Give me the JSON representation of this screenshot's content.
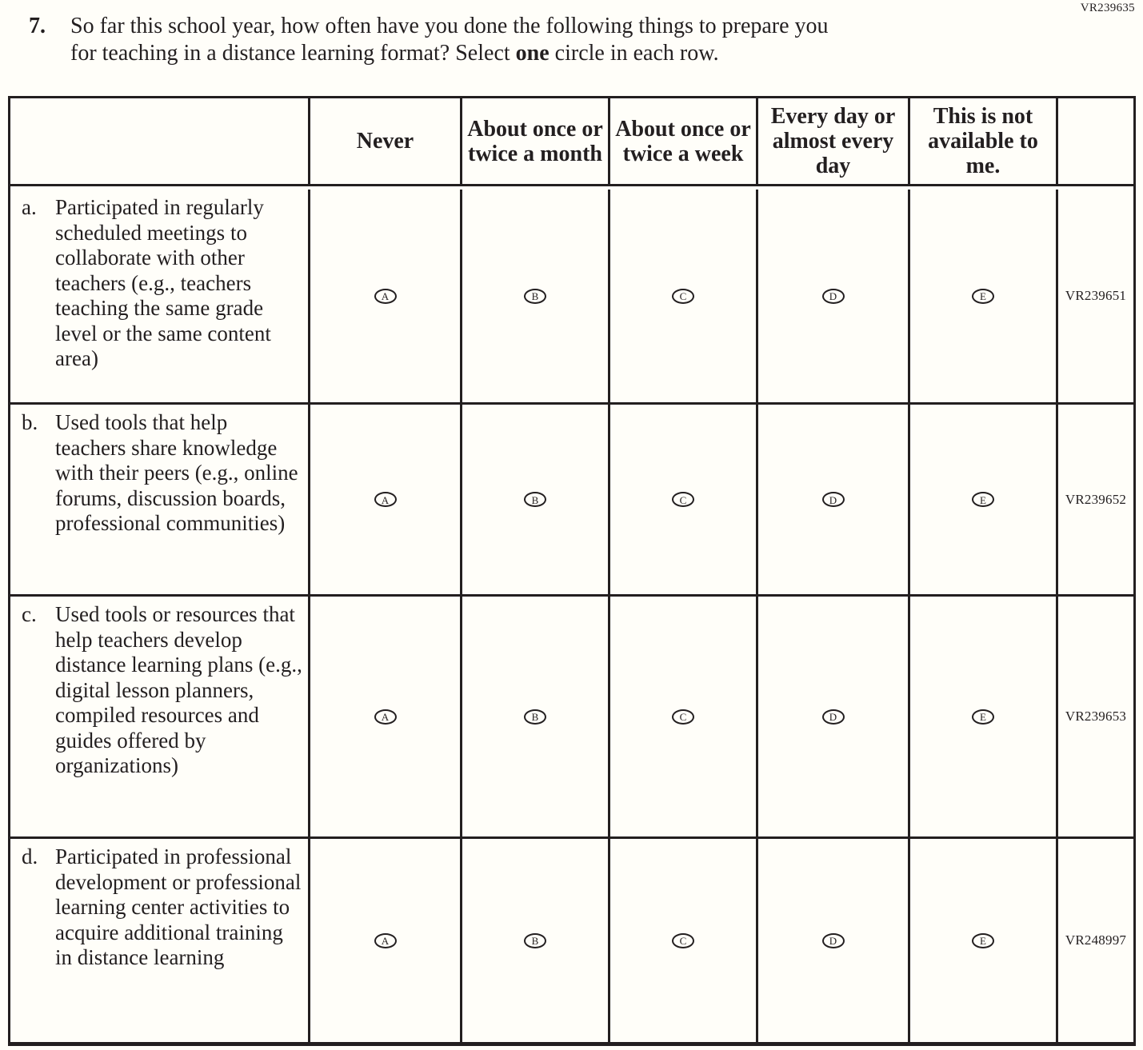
{
  "page_code_top": "VR239635",
  "question": {
    "number": "7.",
    "line1": "So far this school year, how often have you done the following things to prepare you",
    "line2_before": "for teaching in a distance learning format? Select ",
    "line2_bold": "one",
    "line2_after": " circle in each row."
  },
  "table": {
    "columns": [
      "Never",
      "About once or twice a month",
      "About once or twice a week",
      "Every day or almost every day",
      "This is not available to me."
    ],
    "options": [
      "A",
      "B",
      "C",
      "D",
      "E"
    ],
    "rows": [
      {
        "letter": "a.",
        "text": "Participated in regularly scheduled meetings to collaborate with other teachers (e.g., teachers teaching the same grade level or the same content area)",
        "code": "VR239651"
      },
      {
        "letter": "b.",
        "text": "Used tools that help teachers share knowledge with their peers (e.g., online forums, discussion boards, professional communities)",
        "code": "VR239652"
      },
      {
        "letter": "c.",
        "text": "Used tools or resources that help teachers develop distance learning plans (e.g., digital lesson planners, compiled resources and guides offered by organizations)",
        "code": "VR239653"
      },
      {
        "letter": "d.",
        "text": "Participated in professional development or professional learning center activities to acquire additional training in distance learning",
        "code": "VR248997"
      }
    ]
  }
}
